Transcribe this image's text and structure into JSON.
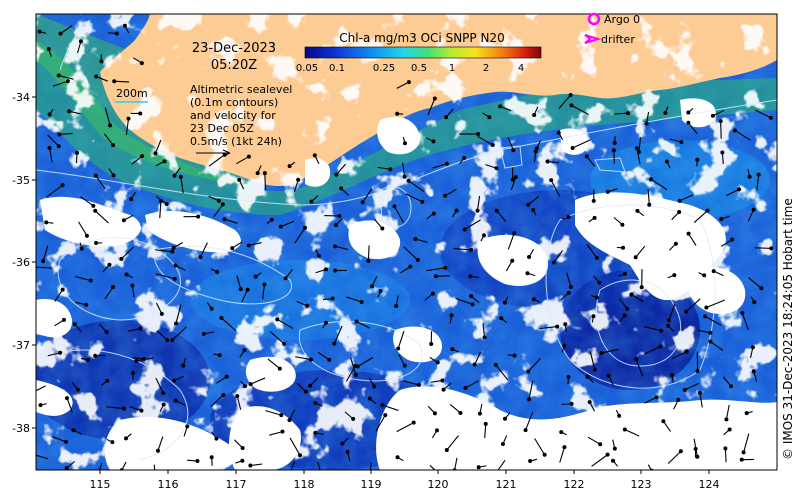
{
  "date": "23-Dec-2023",
  "time": "05:20Z",
  "colorbar": {
    "title": "Chl-a mg/m3 OCi SNPP N20",
    "ticks": [
      "0.05",
      "0.1",
      "0.25",
      "0.5",
      "1",
      "2",
      "4"
    ]
  },
  "legend": {
    "argo": "Argo 0",
    "drifter": "drifter"
  },
  "bathymetry_label": "200m",
  "altimetry_note": {
    "line1": "Altimetric sealevel",
    "line2": "(0.1m contours)",
    "line3": "and velocity for",
    "line4": "23 Dec 05Z",
    "line5": "0.5m/s (1kt 24h)"
  },
  "credit": "© IMOS 31-Dec-2023 18:24:05 Hobart time",
  "axes": {
    "lon_ticks": [
      "115",
      "116",
      "117",
      "118",
      "119",
      "120",
      "121",
      "122",
      "123",
      "124"
    ],
    "lat_ticks": [
      "-34",
      "-35",
      "-36",
      "-37",
      "-38"
    ]
  },
  "colors": {
    "land": "#fdcb94",
    "ocean_deep": "#1030b8",
    "ocean_mid": "#1a6de0",
    "coastal_green": "#3fbe5a",
    "contour": "#cfe8ff",
    "argo": "#ff00ff"
  }
}
